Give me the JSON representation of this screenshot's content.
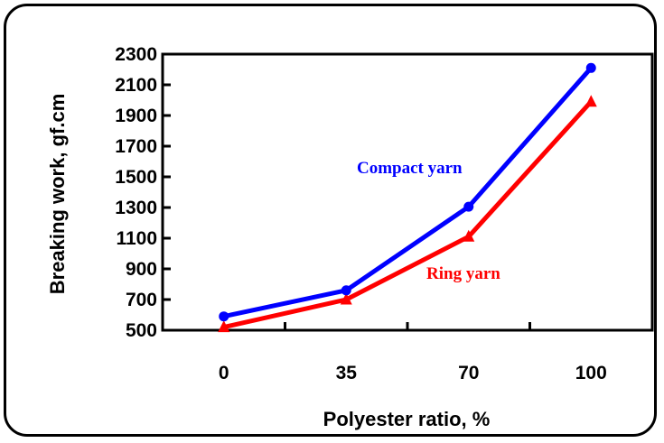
{
  "chart_data": {
    "type": "line",
    "title": "",
    "xlabel": "Polyester ratio, %",
    "ylabel": "Breaking work, gf.cm",
    "categories": [
      "0",
      "35",
      "70",
      "100"
    ],
    "ylim": [
      500,
      2300
    ],
    "yticks": [
      500,
      700,
      900,
      1100,
      1300,
      1500,
      1700,
      1900,
      2100,
      2300
    ],
    "grid": false,
    "legend": "none (series labelled inline)",
    "series": [
      {
        "name": "Compact yarn",
        "values": [
          590,
          760,
          1305,
          2210
        ],
        "color": "#0000ff",
        "marker": "circle"
      },
      {
        "name": "Ring yarn",
        "values": [
          520,
          700,
          1110,
          1990
        ],
        "color": "#ff0000",
        "marker": "triangle"
      }
    ]
  }
}
